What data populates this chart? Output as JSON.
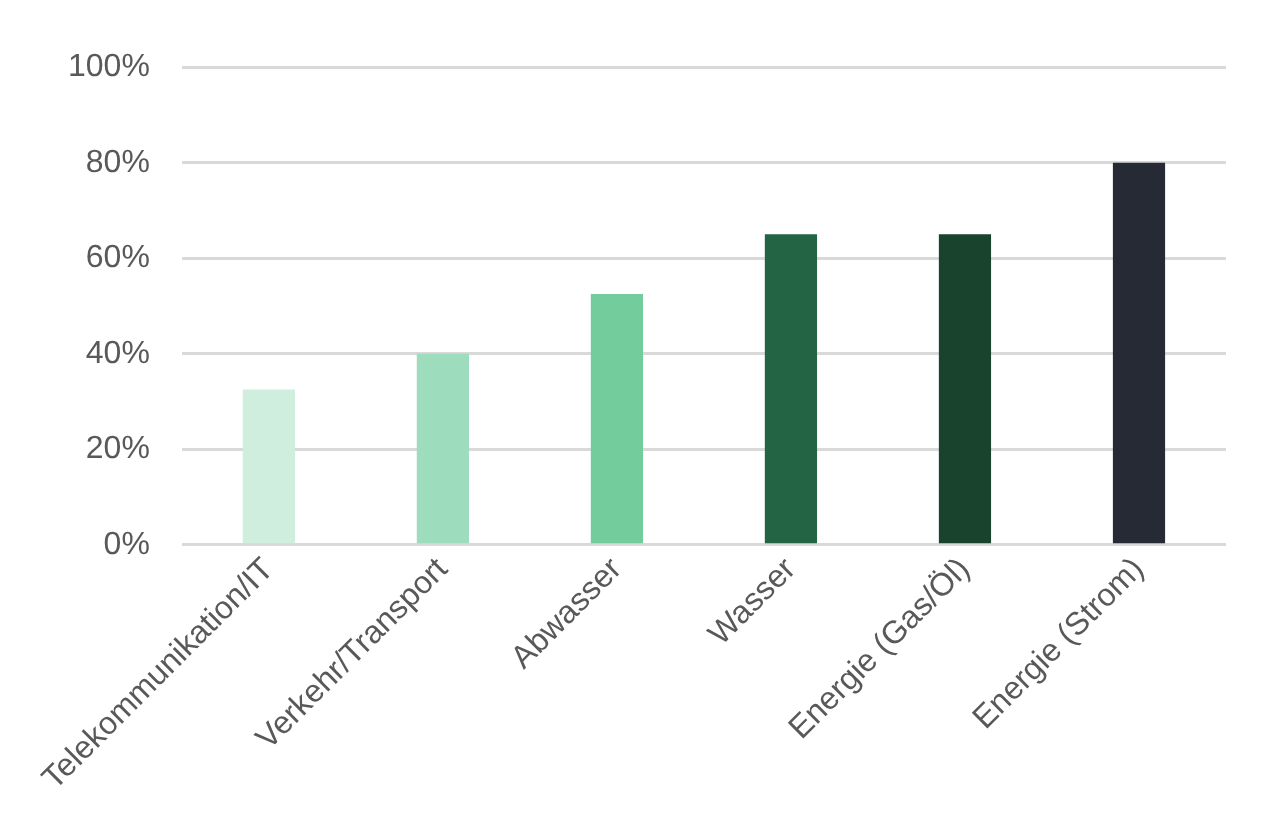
{
  "chart_data": {
    "type": "bar",
    "categories": [
      "Telekommunikation/IT",
      "Verkehr/Transport",
      "Abwasser",
      "Wasser",
      "Energie (Gas/Öl)",
      "Energie (Strom)"
    ],
    "values": [
      32.5,
      40,
      52.5,
      65,
      65,
      80
    ],
    "colors": [
      "#cfeedd",
      "#9ddcbc",
      "#72cc9c",
      "#226443",
      "#19432c",
      "#252a35"
    ],
    "ylim": [
      0,
      100
    ],
    "yticks": [
      {
        "value": 0,
        "label": "0%"
      },
      {
        "value": 20,
        "label": "20%"
      },
      {
        "value": 40,
        "label": "40%"
      },
      {
        "value": 60,
        "label": "60%"
      },
      {
        "value": 80,
        "label": "80%"
      },
      {
        "value": 100,
        "label": "100%"
      }
    ],
    "grid": "y"
  }
}
